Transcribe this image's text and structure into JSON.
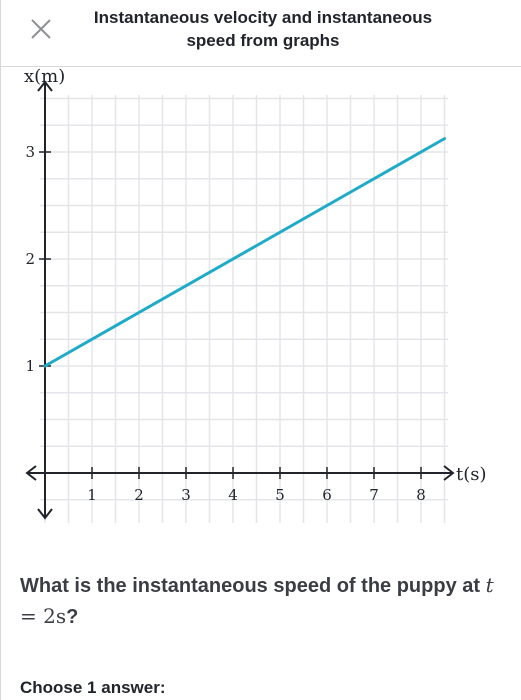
{
  "header": {
    "title": "Instantaneous velocity and instantaneous speed from graphs",
    "close_icon": "close-icon"
  },
  "chart_data": {
    "type": "line",
    "title": "",
    "xlabel": "t(s)",
    "ylabel": "x(m)",
    "xlim": [
      0,
      8.5
    ],
    "ylim": [
      -0.5,
      3.5
    ],
    "x_ticks": [
      1,
      2,
      3,
      4,
      5,
      6,
      7,
      8
    ],
    "y_ticks": [
      1,
      2,
      3
    ],
    "grid": true,
    "series": [
      {
        "x": [
          0,
          8.5
        ],
        "y": [
          1,
          3.125
        ],
        "color": "#1fabc8"
      }
    ]
  },
  "question": {
    "prefix": "What is the instantaneous speed of the puppy at",
    "var": "t",
    "equals": "=",
    "value": "2",
    "unit": "s",
    "suffix": "?"
  },
  "choose_label": "Choose 1 answer:",
  "colors": {
    "line": "#1fabc8",
    "grid": "#e3e5e8",
    "axis": "#21242c",
    "text": "#21242c"
  }
}
